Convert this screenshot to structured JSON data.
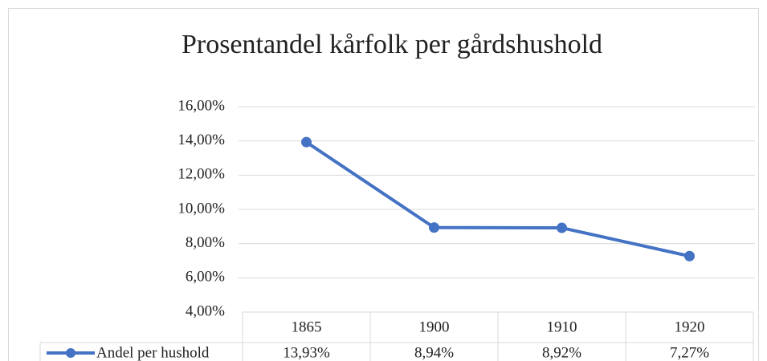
{
  "chart_data": {
    "type": "line",
    "title": "Prosentandel kårfolk per gårdshushold",
    "categories": [
      "1865",
      "1900",
      "1910",
      "1920"
    ],
    "series": [
      {
        "name": "Andel per hushold",
        "color": "#4472c4",
        "values": [
          13.93,
          8.94,
          8.92,
          7.27
        ],
        "value_labels": [
          "13,93%",
          "8,94%",
          "8,92%",
          "7,27%"
        ]
      }
    ],
    "ylim": [
      4,
      16
    ],
    "yticks": [
      {
        "value": 4,
        "label": "4,00%"
      },
      {
        "value": 6,
        "label": "6,00%"
      },
      {
        "value": 8,
        "label": "8,00%"
      },
      {
        "value": 10,
        "label": "10,00%"
      },
      {
        "value": 12,
        "label": "12,00%"
      },
      {
        "value": 14,
        "label": "14,00%"
      },
      {
        "value": 16,
        "label": "16,00%"
      }
    ],
    "grid": true,
    "data_table": true
  }
}
